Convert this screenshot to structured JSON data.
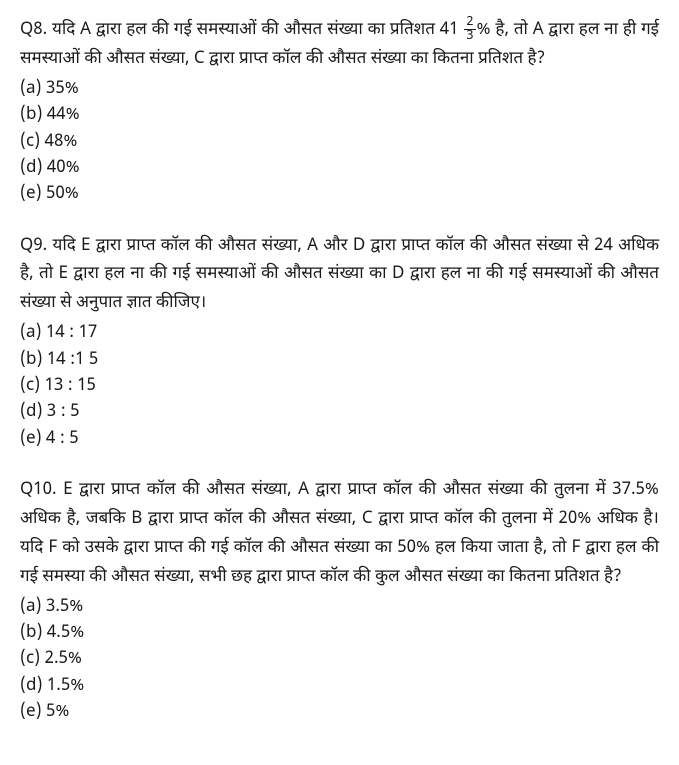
{
  "questions": [
    {
      "label": "Q8.",
      "text_pre": "यदि A द्वारा हल की गई समस्याओं की औसत संख्या का प्रतिशत 41",
      "frac_num": "2",
      "frac_den": "3",
      "text_post": "% है, तो A द्वारा हल ना ही गई समस्याओं की औसत संख्या, C द्वारा प्राप्त कॉल की औसत संख्या का कितना प्रतिशत है?",
      "options": [
        "(a) 35%",
        "(b) 44%",
        "(c) 48%",
        "(d) 40%",
        "(e) 50%"
      ]
    },
    {
      "label": "Q9.",
      "text": "यदि E द्वारा प्राप्त कॉल की औसत संख्या, A और D द्वारा प्राप्त कॉल की औसत संख्या से 24 अधिक है, तो E द्वारा हल ना की गई समस्याओं की औसत संख्या का D द्वारा हल ना की गई समस्याओं की औसत संख्या से अनुपात ज्ञात कीजिए।",
      "options": [
        "(a) 14 : 17",
        "(b) 14 :1 5",
        "(c) 13 : 15",
        "(d) 3 : 5",
        "(e) 4 : 5"
      ]
    },
    {
      "label": "Q10.",
      "text": "E द्वारा प्राप्त कॉल की औसत संख्या, A द्वारा प्राप्त कॉल की औसत संख्या की तुलना में 37.5% अधिक है, जबकि B द्वारा प्राप्त कॉल की औसत संख्या, C द्वारा प्राप्त कॉल की तुलना में 20% अधिक है। यदि F को उसके द्वारा प्राप्त की गई कॉल की औसत संख्या का 50% हल किया जाता है, तो F द्वारा हल की गई समस्या की औसत संख्या, सभी छह द्वारा प्राप्त कॉल की कुल औसत संख्या का कितना प्रतिशत है?",
      "options": [
        "(a) 3.5%",
        "(b) 4.5%",
        "(c) 2.5%",
        "(d) 1.5%",
        "(e) 5%"
      ]
    }
  ]
}
